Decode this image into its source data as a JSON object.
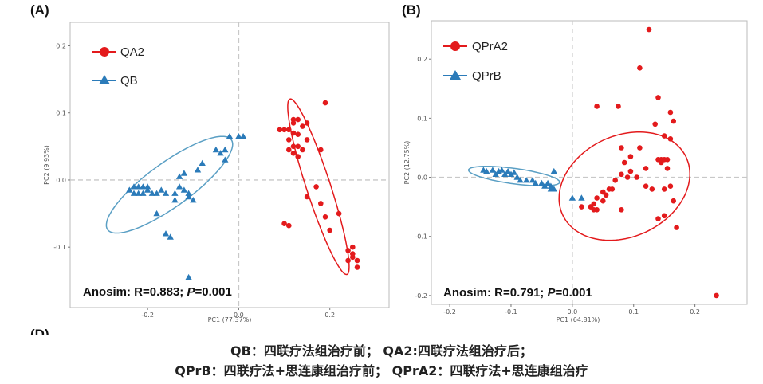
{
  "caption": {
    "line1": "QB：四联疗法组治疗前； QA2:四联疗法组治疗后；",
    "line2": "QPrB：四联疗法+思连康组治疗前； QPrA2：四联疗法+思连康组治疗"
  },
  "cut_label": "(D)",
  "chart_data": [
    {
      "type": "scatter",
      "panel_label": "(A)",
      "xlabel": "PC1 (77.37%)",
      "ylabel": "PC2 (9.93%)",
      "xlim": [
        -0.37,
        0.33
      ],
      "ylim": [
        -0.19,
        0.235
      ],
      "xticks": [
        -0.2,
        0.0,
        0.2
      ],
      "xtick_labels": [
        "-0.2",
        "0.0",
        "0.2"
      ],
      "yticks": [
        0.2,
        0.1,
        0.0,
        -0.1
      ],
      "ytick_labels": [
        "0.2",
        "0.1",
        "0.0",
        "-0.1"
      ],
      "grid": false,
      "legend_position": "top-left",
      "annotation": {
        "prefix": "Anosim: R=0.883; ",
        "p_symbol": "P",
        "suffix": "=0.001"
      },
      "series": [
        {
          "name": "QA2",
          "color": "#e31a1c",
          "marker": "circle",
          "points": [
            [
              0.12,
              0.09
            ],
            [
              0.13,
              0.09
            ],
            [
              0.12,
              0.085
            ],
            [
              0.11,
              0.075
            ],
            [
              0.14,
              0.08
            ],
            [
              0.12,
              0.07
            ],
            [
              0.13,
              0.068
            ],
            [
              0.15,
              0.085
            ],
            [
              0.09,
              0.075
            ],
            [
              0.1,
              0.075
            ],
            [
              0.11,
              0.06
            ],
            [
              0.12,
              0.05
            ],
            [
              0.13,
              0.05
            ],
            [
              0.14,
              0.045
            ],
            [
              0.13,
              0.035
            ],
            [
              0.12,
              0.04
            ],
            [
              0.11,
              0.045
            ],
            [
              0.15,
              0.06
            ],
            [
              0.18,
              0.045
            ],
            [
              0.19,
              0.115
            ],
            [
              0.1,
              -0.065
            ],
            [
              0.11,
              -0.068
            ],
            [
              0.17,
              -0.01
            ],
            [
              0.18,
              -0.035
            ],
            [
              0.15,
              -0.025
            ],
            [
              0.19,
              -0.055
            ],
            [
              0.22,
              -0.05
            ],
            [
              0.2,
              -0.075
            ],
            [
              0.24,
              -0.105
            ],
            [
              0.25,
              -0.1
            ],
            [
              0.24,
              -0.12
            ],
            [
              0.25,
              -0.115
            ],
            [
              0.26,
              -0.12
            ],
            [
              0.26,
              -0.13
            ],
            [
              0.25,
              -0.11
            ]
          ]
        },
        {
          "name": "QB",
          "color": "#2b7bb9",
          "marker": "triangle",
          "points": [
            [
              -0.23,
              -0.01
            ],
            [
              -0.24,
              -0.015
            ],
            [
              -0.22,
              -0.01
            ],
            [
              -0.21,
              -0.02
            ],
            [
              -0.2,
              -0.015
            ],
            [
              -0.22,
              -0.02
            ],
            [
              -0.19,
              -0.02
            ],
            [
              -0.2,
              -0.01
            ],
            [
              -0.23,
              -0.02
            ],
            [
              -0.21,
              -0.01
            ],
            [
              -0.18,
              -0.02
            ],
            [
              -0.17,
              -0.015
            ],
            [
              -0.16,
              -0.02
            ],
            [
              -0.14,
              -0.02
            ],
            [
              -0.13,
              -0.01
            ],
            [
              -0.12,
              -0.015
            ],
            [
              -0.11,
              -0.02
            ],
            [
              -0.13,
              0.005
            ],
            [
              -0.12,
              0.01
            ],
            [
              -0.11,
              -0.025
            ],
            [
              -0.09,
              0.015
            ],
            [
              -0.08,
              0.025
            ],
            [
              -0.05,
              0.045
            ],
            [
              -0.04,
              0.04
            ],
            [
              -0.03,
              0.03
            ],
            [
              -0.03,
              0.045
            ],
            [
              -0.02,
              0.065
            ],
            [
              0.0,
              0.065
            ],
            [
              0.01,
              0.065
            ],
            [
              -0.14,
              -0.03
            ],
            [
              -0.18,
              -0.05
            ],
            [
              -0.16,
              -0.08
            ],
            [
              -0.15,
              -0.085
            ],
            [
              -0.11,
              -0.145
            ],
            [
              -0.1,
              -0.03
            ]
          ]
        }
      ],
      "ellipses": [
        {
          "series": "QA2",
          "center": [
            0.175,
            -0.01
          ],
          "radii": [
            0.145,
            0.025
          ],
          "angle_deg": -64,
          "color": "#e31a1c"
        },
        {
          "series": "QB",
          "center": [
            -0.152,
            -0.007
          ],
          "radii": [
            0.152,
            0.036
          ],
          "angle_deg": 25,
          "color": "#5a9fc4"
        }
      ]
    },
    {
      "type": "scatter",
      "panel_label": "(B)",
      "xlabel": "PC1 (64.81%)",
      "ylabel": "PC2 (12.75%)",
      "xlim": [
        -0.23,
        0.285
      ],
      "ylim": [
        -0.215,
        0.265
      ],
      "xticks": [
        -0.2,
        -0.1,
        0.0,
        0.1,
        0.2
      ],
      "xtick_labels": [
        "-0.2",
        "-0.1",
        "0.0",
        "0.1",
        "0.2"
      ],
      "yticks": [
        0.2,
        0.1,
        0.0,
        -0.1,
        -0.2
      ],
      "ytick_labels": [
        "0.2",
        "0.1",
        "0.0",
        "-0.1",
        "-0.2"
      ],
      "grid": false,
      "legend_position": "top-left",
      "annotation": {
        "prefix": "Anosim: R=0.791; ",
        "p_symbol": "P",
        "suffix": "=0.001"
      },
      "series": [
        {
          "name": "QPrA2",
          "color": "#e31a1c",
          "marker": "circle",
          "points": [
            [
              0.125,
              0.25
            ],
            [
              0.11,
              0.185
            ],
            [
              0.14,
              0.135
            ],
            [
              0.16,
              0.11
            ],
            [
              0.165,
              0.095
            ],
            [
              0.04,
              0.12
            ],
            [
              0.075,
              0.12
            ],
            [
              0.135,
              0.09
            ],
            [
              0.15,
              0.07
            ],
            [
              0.16,
              0.065
            ],
            [
              0.11,
              0.05
            ],
            [
              0.08,
              0.05
            ],
            [
              0.095,
              0.035
            ],
            [
              0.085,
              0.025
            ],
            [
              0.145,
              0.03
            ],
            [
              0.15,
              0.03
            ],
            [
              0.155,
              0.03
            ],
            [
              0.14,
              0.03
            ],
            [
              0.145,
              0.025
            ],
            [
              0.155,
              0.015
            ],
            [
              0.12,
              0.015
            ],
            [
              0.095,
              0.01
            ],
            [
              0.08,
              0.005
            ],
            [
              0.09,
              0.0
            ],
            [
              0.105,
              0.0
            ],
            [
              0.07,
              -0.005
            ],
            [
              0.12,
              -0.015
            ],
            [
              0.13,
              -0.02
            ],
            [
              0.15,
              -0.02
            ],
            [
              0.16,
              -0.015
            ],
            [
              0.06,
              -0.02
            ],
            [
              0.065,
              -0.02
            ],
            [
              0.05,
              -0.025
            ],
            [
              0.055,
              -0.03
            ],
            [
              0.04,
              -0.035
            ],
            [
              0.035,
              -0.045
            ],
            [
              0.03,
              -0.05
            ],
            [
              0.035,
              -0.055
            ],
            [
              0.04,
              -0.055
            ],
            [
              0.03,
              -0.05
            ],
            [
              0.015,
              -0.05
            ],
            [
              0.05,
              -0.04
            ],
            [
              0.165,
              -0.04
            ],
            [
              0.15,
              -0.065
            ],
            [
              0.14,
              -0.07
            ],
            [
              0.17,
              -0.085
            ],
            [
              0.08,
              -0.055
            ],
            [
              0.235,
              -0.2
            ]
          ]
        },
        {
          "name": "QPrB",
          "color": "#2b7bb9",
          "marker": "triangle",
          "points": [
            [
              -0.145,
              0.012
            ],
            [
              -0.14,
              0.01
            ],
            [
              -0.13,
              0.012
            ],
            [
              -0.12,
              0.01
            ],
            [
              -0.115,
              0.012
            ],
            [
              -0.11,
              0.005
            ],
            [
              -0.105,
              0.01
            ],
            [
              -0.1,
              0.005
            ],
            [
              -0.09,
              0.0
            ],
            [
              -0.085,
              -0.005
            ],
            [
              -0.075,
              -0.005
            ],
            [
              -0.065,
              -0.005
            ],
            [
              -0.06,
              -0.01
            ],
            [
              -0.05,
              -0.01
            ],
            [
              -0.045,
              -0.015
            ],
            [
              -0.04,
              -0.01
            ],
            [
              -0.035,
              -0.015
            ],
            [
              -0.03,
              0.01
            ],
            [
              -0.035,
              -0.02
            ],
            [
              -0.03,
              -0.02
            ],
            [
              -0.125,
              0.005
            ],
            [
              -0.095,
              0.008
            ],
            [
              0.0,
              -0.035
            ],
            [
              0.015,
              -0.035
            ]
          ]
        }
      ],
      "ellipses": [
        {
          "series": "QPrA2",
          "center": [
            0.085,
            -0.015
          ],
          "radii": [
            0.112,
            0.085
          ],
          "angle_deg": 28,
          "color": "#e31a1c"
        },
        {
          "series": "QPrB",
          "center": [
            -0.095,
            0.002
          ],
          "radii": [
            0.075,
            0.013
          ],
          "angle_deg": -8,
          "color": "#5a9fc4"
        }
      ]
    }
  ]
}
